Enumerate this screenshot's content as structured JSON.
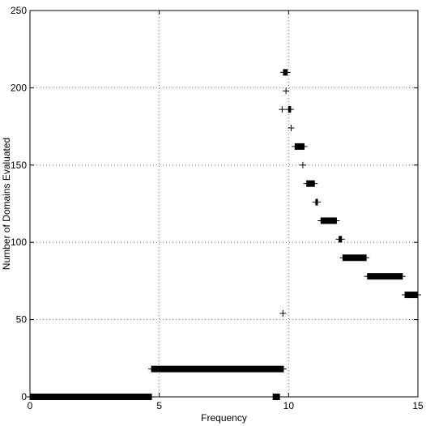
{
  "chart_data": {
    "type": "scatter",
    "title": "",
    "xlabel": "Frequency",
    "ylabel": "Number of Domains Evaluated",
    "xlim": [
      0,
      15
    ],
    "ylim": [
      0,
      250
    ],
    "xticks": [
      0,
      5,
      10,
      15
    ],
    "yticks": [
      0,
      50,
      100,
      150,
      200,
      250
    ],
    "grid": true,
    "marker": "+",
    "marker_color": "#000000",
    "segments": [
      {
        "y": 0,
        "x_start": 0.0,
        "x_end": 4.7
      },
      {
        "y": 18,
        "x_start": 4.7,
        "x_end": 9.8
      },
      {
        "y": 0,
        "x_start": 9.4,
        "x_end": 9.65
      },
      {
        "y": 210,
        "x_start": 9.8,
        "x_end": 9.95
      },
      {
        "y": 186,
        "x_start": 10.0,
        "x_end": 10.08
      },
      {
        "y": 162,
        "x_start": 10.25,
        "x_end": 10.6
      },
      {
        "y": 138,
        "x_start": 10.7,
        "x_end": 11.0
      },
      {
        "y": 126,
        "x_start": 11.05,
        "x_end": 11.12
      },
      {
        "y": 114,
        "x_start": 11.25,
        "x_end": 11.85
      },
      {
        "y": 102,
        "x_start": 11.95,
        "x_end": 12.05
      },
      {
        "y": 90,
        "x_start": 12.1,
        "x_end": 13.0
      },
      {
        "y": 78,
        "x_start": 13.05,
        "x_end": 14.4
      },
      {
        "y": 66,
        "x_start": 14.5,
        "x_end": 15.0
      }
    ],
    "points": [
      {
        "x": 9.9,
        "y": 198
      },
      {
        "x": 9.75,
        "y": 186
      },
      {
        "x": 10.1,
        "y": 174
      },
      {
        "x": 10.55,
        "y": 150
      },
      {
        "x": 9.78,
        "y": 54
      }
    ]
  }
}
